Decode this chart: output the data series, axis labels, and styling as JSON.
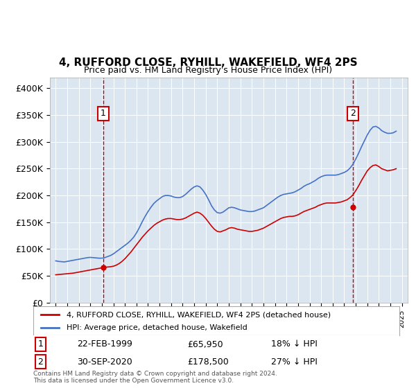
{
  "title": "4, RUFFORD CLOSE, RYHILL, WAKEFIELD, WF4 2PS",
  "subtitle": "Price paid vs. HM Land Registry's House Price Index (HPI)",
  "legend1": "4, RUFFORD CLOSE, RYHILL, WAKEFIELD, WF4 2PS (detached house)",
  "legend2": "HPI: Average price, detached house, Wakefield",
  "point1_label": "1",
  "point1_date": "22-FEB-1999",
  "point1_price": "£65,950",
  "point1_hpi": "18% ↓ HPI",
  "point1_x": 1999.13,
  "point1_y": 65950,
  "point2_label": "2",
  "point2_date": "30-SEP-2020",
  "point2_price": "£178,500",
  "point2_hpi": "27% ↓ HPI",
  "point2_x": 2020.75,
  "point2_y": 178500,
  "footer": "Contains HM Land Registry data © Crown copyright and database right 2024.\nThis data is licensed under the Open Government Licence v3.0.",
  "bg_color": "#dce6f1",
  "plot_bg": "#dce6f1",
  "red_color": "#cc0000",
  "blue_color": "#4472c4",
  "ylim": [
    0,
    420000
  ],
  "xlim": [
    1994.5,
    2025.5
  ],
  "yticks": [
    0,
    50000,
    100000,
    150000,
    200000,
    250000,
    300000,
    350000,
    400000
  ],
  "ytick_labels": [
    "£0",
    "£50K",
    "£100K",
    "£150K",
    "£200K",
    "£250K",
    "£300K",
    "£350K",
    "£400K"
  ],
  "hpi_years": [
    1995.0,
    1995.25,
    1995.5,
    1995.75,
    1996.0,
    1996.25,
    1996.5,
    1996.75,
    1997.0,
    1997.25,
    1997.5,
    1997.75,
    1998.0,
    1998.25,
    1998.5,
    1998.75,
    1999.0,
    1999.25,
    1999.5,
    1999.75,
    2000.0,
    2000.25,
    2000.5,
    2000.75,
    2001.0,
    2001.25,
    2001.5,
    2001.75,
    2002.0,
    2002.25,
    2002.5,
    2002.75,
    2003.0,
    2003.25,
    2003.5,
    2003.75,
    2004.0,
    2004.25,
    2004.5,
    2004.75,
    2005.0,
    2005.25,
    2005.5,
    2005.75,
    2006.0,
    2006.25,
    2006.5,
    2006.75,
    2007.0,
    2007.25,
    2007.5,
    2007.75,
    2008.0,
    2008.25,
    2008.5,
    2008.75,
    2009.0,
    2009.25,
    2009.5,
    2009.75,
    2010.0,
    2010.25,
    2010.5,
    2010.75,
    2011.0,
    2011.25,
    2011.5,
    2011.75,
    2012.0,
    2012.25,
    2012.5,
    2012.75,
    2013.0,
    2013.25,
    2013.5,
    2013.75,
    2014.0,
    2014.25,
    2014.5,
    2014.75,
    2015.0,
    2015.25,
    2015.5,
    2015.75,
    2016.0,
    2016.25,
    2016.5,
    2016.75,
    2017.0,
    2017.25,
    2017.5,
    2017.75,
    2018.0,
    2018.25,
    2018.5,
    2018.75,
    2019.0,
    2019.25,
    2019.5,
    2019.75,
    2020.0,
    2020.25,
    2020.5,
    2020.75,
    2021.0,
    2021.25,
    2021.5,
    2021.75,
    2022.0,
    2022.25,
    2022.5,
    2022.75,
    2023.0,
    2023.25,
    2023.5,
    2023.75,
    2024.0,
    2024.25,
    2024.5
  ],
  "hpi_values": [
    78000,
    77000,
    76500,
    76000,
    77000,
    78000,
    79000,
    80000,
    81000,
    82000,
    83000,
    84000,
    84500,
    84000,
    83500,
    83000,
    83000,
    84000,
    86000,
    88000,
    91000,
    95000,
    99000,
    103000,
    107000,
    111000,
    116000,
    122000,
    130000,
    140000,
    151000,
    161000,
    170000,
    178000,
    185000,
    190000,
    194000,
    198000,
    200000,
    200000,
    199000,
    197000,
    196000,
    196000,
    198000,
    202000,
    207000,
    212000,
    216000,
    218000,
    216000,
    210000,
    202000,
    192000,
    181000,
    173000,
    168000,
    167000,
    169000,
    173000,
    177000,
    178000,
    177000,
    175000,
    173000,
    172000,
    171000,
    170000,
    170000,
    171000,
    173000,
    175000,
    177000,
    181000,
    185000,
    189000,
    193000,
    197000,
    200000,
    202000,
    203000,
    204000,
    205000,
    207000,
    210000,
    213000,
    217000,
    220000,
    222000,
    225000,
    228000,
    232000,
    235000,
    237000,
    238000,
    238000,
    238000,
    238000,
    239000,
    241000,
    243000,
    246000,
    251000,
    258000,
    268000,
    279000,
    291000,
    302000,
    313000,
    322000,
    328000,
    329000,
    326000,
    321000,
    318000,
    316000,
    316000,
    317000,
    320000
  ],
  "price_years": [
    1995.0,
    1995.25,
    1995.5,
    1995.75,
    1996.0,
    1996.25,
    1996.5,
    1996.75,
    1997.0,
    1997.25,
    1997.5,
    1997.75,
    1998.0,
    1998.25,
    1998.5,
    1998.75,
    1999.0,
    1999.25,
    1999.5,
    1999.75,
    2000.0,
    2000.25,
    2000.5,
    2000.75,
    2001.0,
    2001.25,
    2001.5,
    2001.75,
    2002.0,
    2002.25,
    2002.5,
    2002.75,
    2003.0,
    2003.25,
    2003.5,
    2003.75,
    2004.0,
    2004.25,
    2004.5,
    2004.75,
    2005.0,
    2005.25,
    2005.5,
    2005.75,
    2006.0,
    2006.25,
    2006.5,
    2006.75,
    2007.0,
    2007.25,
    2007.5,
    2007.75,
    2008.0,
    2008.25,
    2008.5,
    2008.75,
    2009.0,
    2009.25,
    2009.5,
    2009.75,
    2010.0,
    2010.25,
    2010.5,
    2010.75,
    2011.0,
    2011.25,
    2011.5,
    2011.75,
    2012.0,
    2012.25,
    2012.5,
    2012.75,
    2013.0,
    2013.25,
    2013.5,
    2013.75,
    2014.0,
    2014.25,
    2014.5,
    2014.75,
    2015.0,
    2015.25,
    2015.5,
    2015.75,
    2016.0,
    2016.25,
    2016.5,
    2016.75,
    2017.0,
    2017.25,
    2017.5,
    2017.75,
    2018.0,
    2018.25,
    2018.5,
    2018.75,
    2019.0,
    2019.25,
    2019.5,
    2019.75,
    2020.0,
    2020.25,
    2020.5,
    2020.75,
    2021.0,
    2021.25,
    2021.5,
    2021.75,
    2022.0,
    2022.25,
    2022.5,
    2022.75,
    2023.0,
    2023.25,
    2023.5,
    2023.75,
    2024.0,
    2024.25,
    2024.5
  ],
  "price_values": [
    52000,
    52500,
    53000,
    53500,
    54000,
    54500,
    55000,
    56000,
    57000,
    58000,
    59000,
    60000,
    61000,
    62000,
    63000,
    64000,
    65000,
    66000,
    66500,
    67000,
    68000,
    70000,
    73000,
    77000,
    82000,
    88000,
    94000,
    101000,
    108000,
    115000,
    122000,
    128000,
    134000,
    139000,
    144000,
    148000,
    151000,
    154000,
    156000,
    157000,
    157000,
    156000,
    155000,
    155000,
    156000,
    158000,
    161000,
    164000,
    167000,
    169000,
    167000,
    163000,
    157000,
    150000,
    143000,
    137000,
    133000,
    132000,
    134000,
    136000,
    139000,
    140000,
    139000,
    137000,
    136000,
    135000,
    134000,
    133000,
    133000,
    134000,
    135000,
    137000,
    139000,
    142000,
    145000,
    148000,
    151000,
    154000,
    157000,
    159000,
    160000,
    161000,
    161000,
    162000,
    164000,
    167000,
    170000,
    172000,
    174000,
    176000,
    178000,
    181000,
    183000,
    185000,
    186000,
    186000,
    186000,
    186000,
    187000,
    188000,
    190000,
    192000,
    196000,
    201000,
    209000,
    218000,
    228000,
    237000,
    246000,
    252000,
    256000,
    257000,
    254000,
    250000,
    248000,
    246000,
    247000,
    248000,
    250000
  ]
}
